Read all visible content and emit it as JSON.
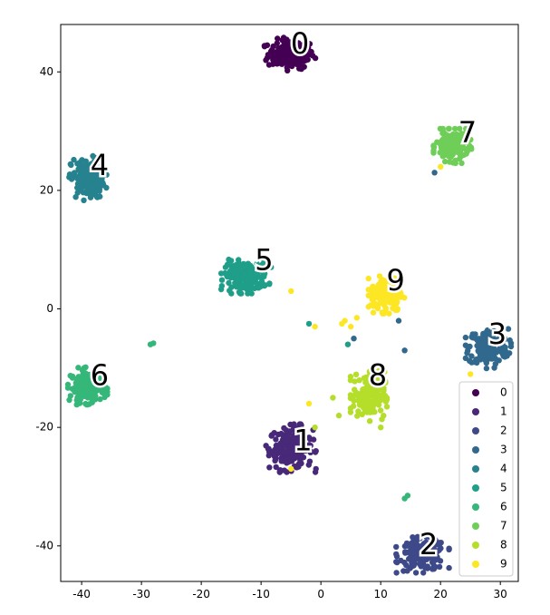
{
  "chart_data": {
    "type": "scatter",
    "title": "",
    "xlabel": "",
    "ylabel": "",
    "xlim": [
      -43.5,
      33
    ],
    "ylim": [
      -46,
      48
    ],
    "xticks": [
      -40,
      -30,
      -20,
      -10,
      0,
      10,
      20,
      30
    ],
    "yticks": [
      -40,
      -20,
      0,
      20,
      40
    ],
    "grid": false,
    "legend_position": "lower-right",
    "colormap": "viridis",
    "series": [
      {
        "name": "0",
        "color": "#440154",
        "center": [
          -5,
          43
        ],
        "spread": [
          3.5,
          2.2
        ],
        "count": 180,
        "label_pos": [
          -3.5,
          44.5
        ]
      },
      {
        "name": "1",
        "color": "#482878",
        "center": [
          -5,
          -23.5
        ],
        "spread": [
          3.3,
          3.2
        ],
        "count": 180,
        "label_pos": [
          -3,
          -22.5
        ]
      },
      {
        "name": "2",
        "color": "#3e4989",
        "center": [
          17,
          -41.5
        ],
        "spread": [
          3.5,
          2.4
        ],
        "count": 180,
        "label_pos": [
          18,
          -40
        ]
      },
      {
        "name": "3",
        "color": "#31688e",
        "center": [
          28,
          -6.5
        ],
        "spread": [
          3.0,
          2.8
        ],
        "count": 180,
        "label_pos": [
          29.5,
          -4.5
        ]
      },
      {
        "name": "4",
        "color": "#26828e",
        "center": [
          -39,
          22
        ],
        "spread": [
          2.5,
          3.0
        ],
        "count": 170,
        "label_pos": [
          -37,
          24
        ]
      },
      {
        "name": "5",
        "color": "#1f9e89",
        "center": [
          -12.5,
          5.5
        ],
        "spread": [
          3.3,
          2.3
        ],
        "count": 180,
        "label_pos": [
          -9.5,
          8
        ]
      },
      {
        "name": "6",
        "color": "#35b779",
        "center": [
          -39,
          -13
        ],
        "spread": [
          2.6,
          2.5
        ],
        "count": 170,
        "label_pos": [
          -37,
          -11.5
        ]
      },
      {
        "name": "7",
        "color": "#6ece58",
        "center": [
          22,
          27.5
        ],
        "spread": [
          2.5,
          2.3
        ],
        "count": 170,
        "label_pos": [
          24.5,
          29.5
        ]
      },
      {
        "name": "8",
        "color": "#b5de2b",
        "center": [
          8,
          -14.5
        ],
        "spread": [
          2.4,
          3.5
        ],
        "count": 180,
        "label_pos": [
          9.5,
          -11.5
        ]
      },
      {
        "name": "9",
        "color": "#fde725",
        "center": [
          11,
          2.5
        ],
        "spread": [
          2.4,
          2.6
        ],
        "count": 170,
        "label_pos": [
          12.5,
          4.5
        ]
      }
    ],
    "cluster_labels": [
      "0",
      "1",
      "2",
      "3",
      "4",
      "5",
      "6",
      "7",
      "8",
      "9"
    ]
  }
}
